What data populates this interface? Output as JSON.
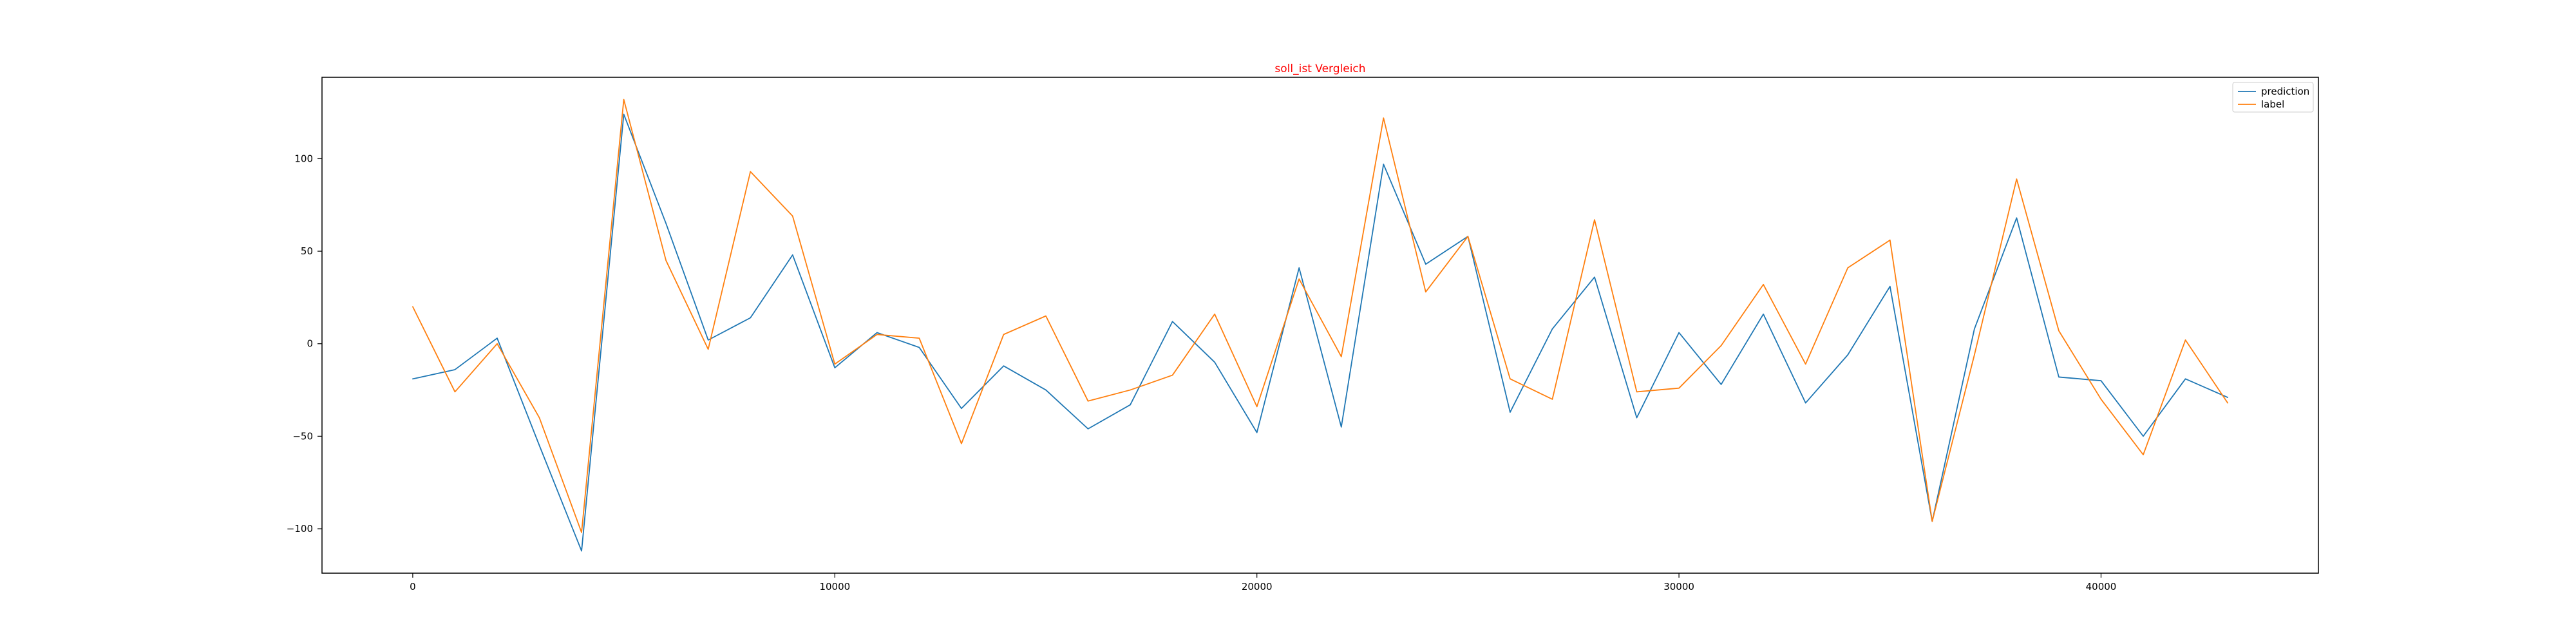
{
  "chart_data": {
    "type": "line",
    "title": "soll_ist Vergleich",
    "title_color": "#ff0000",
    "xlabel": "",
    "ylabel": "",
    "xlim": [
      -2150,
      45150
    ],
    "ylim": [
      -124,
      144
    ],
    "x_ticks": [
      0,
      10000,
      20000,
      30000,
      40000
    ],
    "y_ticks": [
      -100,
      -50,
      0,
      50,
      100
    ],
    "grid": false,
    "legend_position": "top-right",
    "x": [
      0,
      1000,
      2000,
      3000,
      4000,
      5000,
      6000,
      7000,
      8000,
      9000,
      10000,
      11000,
      12000,
      13000,
      14000,
      15000,
      16000,
      17000,
      18000,
      19000,
      20000,
      21000,
      22000,
      23000,
      24000,
      25000,
      26000,
      27000,
      28000,
      29000,
      30000,
      31000,
      32000,
      33000,
      34000,
      35000,
      36000,
      37000,
      38000,
      39000,
      40000,
      41000,
      42000,
      43000
    ],
    "series": [
      {
        "name": "prediction",
        "color": "#1f77b4",
        "values": [
          -19,
          -14,
          3,
          -55,
          -112,
          124,
          65,
          2,
          14,
          48,
          -13,
          6,
          -2,
          -35,
          -12,
          -25,
          -46,
          -33,
          12,
          -10,
          -48,
          41,
          -45,
          97,
          43,
          58,
          -37,
          8,
          36,
          -40,
          6,
          -22,
          16,
          -32,
          -6,
          31,
          -96,
          8,
          68,
          -18,
          -20,
          -50,
          -19,
          -29
        ]
      },
      {
        "name": "label",
        "color": "#ff7f0e",
        "values": [
          20,
          -26,
          0,
          -40,
          -102,
          132,
          45,
          -3,
          93,
          69,
          -11,
          5,
          3,
          -54,
          5,
          15,
          -31,
          -25,
          -17,
          16,
          -34,
          35,
          -7,
          122,
          28,
          58,
          -19,
          -30,
          67,
          -26,
          -24,
          -1,
          32,
          -11,
          41,
          56,
          -96,
          -6,
          89,
          7,
          -30,
          -60,
          2,
          -32
        ]
      }
    ]
  }
}
